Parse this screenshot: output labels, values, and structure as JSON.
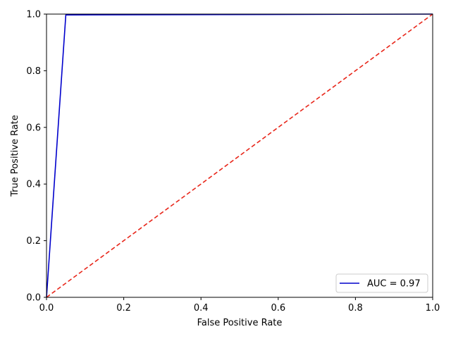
{
  "chart_data": {
    "type": "line",
    "xlabel": "False Positive Rate",
    "ylabel": "True Positive Rate",
    "xlim": [
      0.0,
      1.0
    ],
    "ylim": [
      0.0,
      1.0
    ],
    "x_ticks": [
      "0.0",
      "0.2",
      "0.4",
      "0.6",
      "0.8",
      "1.0"
    ],
    "y_ticks": [
      "0.0",
      "0.2",
      "0.4",
      "0.6",
      "0.8",
      "1.0"
    ],
    "grid": false,
    "legend_position": "lower-right",
    "series": [
      {
        "name": "AUC = 0.97",
        "color": "#0000cc",
        "line_style": "solid",
        "x": [
          0.0,
          0.05,
          0.05,
          1.0
        ],
        "y": [
          0.0,
          0.997,
          0.997,
          1.0
        ]
      },
      {
        "color": "#e8261a",
        "line_style": "dashed",
        "x": [
          0.0,
          1.0
        ],
        "y": [
          0.0,
          1.0
        ]
      }
    ]
  }
}
